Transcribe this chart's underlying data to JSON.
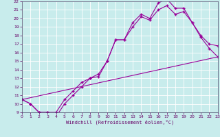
{
  "title": "",
  "xlabel": "Windchill (Refroidissement éolien,°C)",
  "bg_color": "#c8ecec",
  "grid_color": "#ffffff",
  "line_color": "#990099",
  "xmin": 0,
  "xmax": 23,
  "ymin": 9,
  "ymax": 22,
  "series": [
    {
      "x": [
        0,
        1,
        2,
        3,
        4,
        5,
        6,
        7,
        8,
        9,
        10,
        11,
        12,
        13,
        14,
        15,
        16,
        17,
        18,
        19,
        20,
        21,
        22,
        23
      ],
      "y": [
        10.5,
        10.0,
        9.0,
        9.0,
        9.0,
        10.5,
        11.5,
        12.5,
        13.0,
        13.5,
        15.0,
        17.5,
        17.5,
        19.5,
        20.5,
        20.0,
        21.8,
        22.3,
        21.2,
        21.2,
        19.5,
        18.0,
        17.0,
        16.8
      ]
    },
    {
      "x": [
        0,
        1,
        2,
        3,
        4,
        5,
        6,
        7,
        8,
        9,
        10,
        11,
        12,
        13,
        14,
        15,
        16,
        17,
        18,
        19,
        20,
        21,
        22,
        23
      ],
      "y": [
        10.5,
        10.0,
        9.0,
        9.0,
        8.5,
        10.0,
        11.0,
        12.0,
        13.0,
        13.2,
        15.0,
        17.5,
        17.5,
        19.0,
        20.2,
        19.8,
        21.0,
        21.5,
        20.5,
        20.8,
        19.5,
        17.8,
        16.5,
        15.5
      ]
    },
    {
      "x": [
        0,
        23
      ],
      "y": [
        10.5,
        15.5
      ]
    }
  ]
}
